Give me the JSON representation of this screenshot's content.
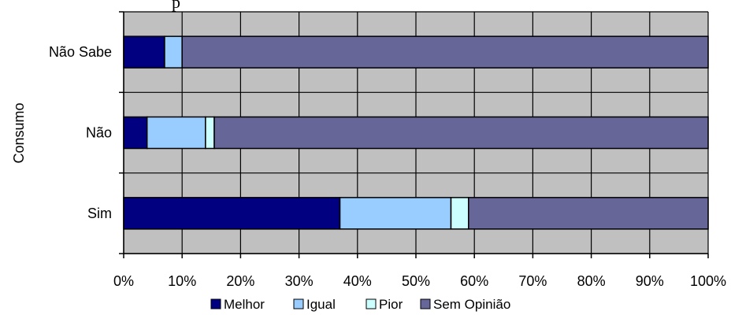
{
  "chart_data": {
    "type": "bar",
    "orientation": "horizontal",
    "stacked": "percent",
    "title_fragment": "p",
    "ylabel": "Consumo",
    "xlabel": "",
    "categories": [
      "Sim",
      "Não",
      "Não Sabe"
    ],
    "xlim": [
      0,
      100
    ],
    "x_ticks": [
      "0%",
      "10%",
      "20%",
      "30%",
      "40%",
      "50%",
      "60%",
      "70%",
      "80%",
      "90%",
      "100%"
    ],
    "series": [
      {
        "name": "Melhor",
        "color": "#000080",
        "values": [
          37,
          4,
          7
        ]
      },
      {
        "name": "Igual",
        "color": "#99ccff",
        "values": [
          19,
          10,
          3
        ]
      },
      {
        "name": "Pior",
        "color": "#ccffff",
        "values": [
          3,
          1.5,
          0
        ]
      },
      {
        "name": "Sem Opinião",
        "color": "#666699",
        "values": [
          41,
          84.5,
          90
        ]
      }
    ],
    "grid": true,
    "plot_background": "#c0c0c0",
    "legend": "bottom"
  }
}
